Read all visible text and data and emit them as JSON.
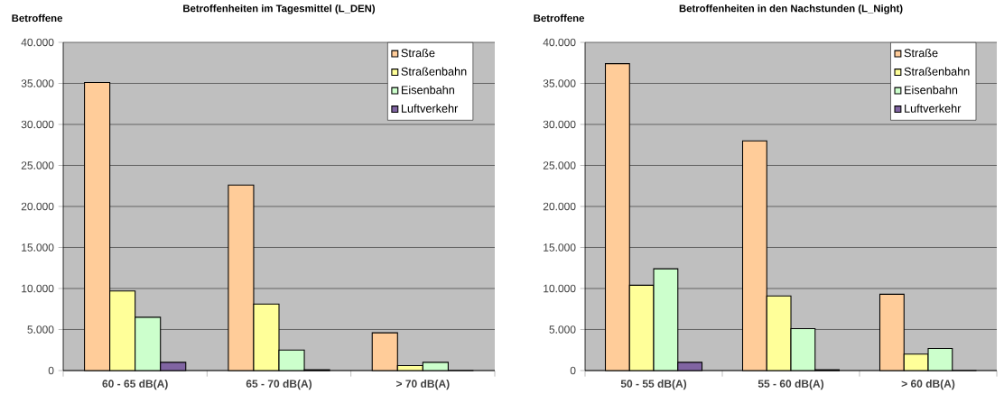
{
  "chart_data": [
    {
      "type": "bar",
      "title": "Betroffenheiten im Tagesmittel (L_DEN)",
      "ylabel": "Betroffene",
      "categories": [
        "60 - 65 dB(A)",
        "65 - 70 dB(A)",
        "> 70 dB(A)"
      ],
      "series": [
        {
          "name": "Straße",
          "color": "#ffcc99",
          "values": [
            35100,
            22600,
            4600
          ]
        },
        {
          "name": "Straßenbahn",
          "color": "#ffff99",
          "values": [
            9700,
            8100,
            600
          ]
        },
        {
          "name": "Eisenbahn",
          "color": "#ccffcc",
          "values": [
            6500,
            2500,
            1000
          ]
        },
        {
          "name": "Luftverkehr",
          "color": "#8064a2",
          "values": [
            1000,
            100,
            0
          ]
        }
      ],
      "ylim": [
        0,
        40000
      ],
      "yticks": [
        0,
        {
          "value": 5000,
          "label": "5.000"
        },
        {
          "value": 10000,
          "label": "10.000"
        },
        {
          "value": 15000,
          "label": "15.000"
        },
        {
          "value": 20000,
          "label": "20.000"
        },
        {
          "value": 25000,
          "label": "25.000"
        },
        {
          "value": 30000,
          "label": "30.000"
        },
        {
          "value": 35000,
          "label": "35.000"
        },
        {
          "value": 40000,
          "label": "40.000"
        }
      ],
      "grid": "y",
      "legend": "top right"
    },
    {
      "type": "bar",
      "title": "Betroffenheiten in den Nachstunden (L_Night)",
      "ylabel": "Betroffene",
      "categories": [
        "50 - 55 dB(A)",
        "55 - 60 dB(A)",
        "> 60 dB(A)"
      ],
      "series": [
        {
          "name": "Straße",
          "color": "#ffcc99",
          "values": [
            37400,
            28000,
            9300
          ]
        },
        {
          "name": "Straßenbahn",
          "color": "#ffff99",
          "values": [
            10400,
            9100,
            2000
          ]
        },
        {
          "name": "Eisenbahn",
          "color": "#ccffcc",
          "values": [
            12400,
            5100,
            2700
          ]
        },
        {
          "name": "Luftverkehr",
          "color": "#8064a2",
          "values": [
            1000,
            100,
            0
          ]
        }
      ],
      "ylim": [
        0,
        40000
      ],
      "yticks": [
        0,
        {
          "value": 5000,
          "label": "5.000"
        },
        {
          "value": 10000,
          "label": "10.000"
        },
        {
          "value": 15000,
          "label": "15.000"
        },
        {
          "value": 20000,
          "label": "20.000"
        },
        {
          "value": 25000,
          "label": "25.000"
        },
        {
          "value": 30000,
          "label": "30.000"
        },
        {
          "value": 35000,
          "label": "35.000"
        },
        {
          "value": 40000,
          "label": "40.000"
        }
      ],
      "grid": "y",
      "legend": "top right"
    }
  ]
}
